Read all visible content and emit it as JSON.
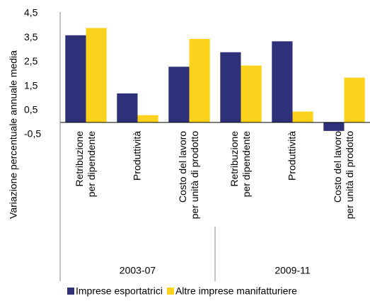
{
  "chart_data": {
    "type": "bar",
    "y_label": "Variazione percentuale annuale media",
    "categories": [
      [
        "Retribuzione",
        "per dipendente"
      ],
      [
        "Produttività"
      ],
      [
        "Costo del lavoro",
        "per unità di prodotto"
      ],
      [
        "Retribuzione",
        "per dipendente"
      ],
      [
        "Produttività"
      ],
      [
        "Costo del lavoro",
        "per unità di prodotto"
      ]
    ],
    "groups": [
      "2003-07",
      "2009-11"
    ],
    "series": [
      {
        "name": "Imprese esportatrici",
        "color": "#2e3079",
        "values": [
          3.6,
          1.2,
          2.3,
          2.9,
          3.35,
          -0.35
        ]
      },
      {
        "name": "Altre imprese manifatturiere",
        "color": "#fdd21d",
        "values": [
          3.9,
          0.3,
          3.45,
          2.35,
          0.45,
          1.85
        ]
      }
    ],
    "ylim": [
      -0.5,
      4.5
    ],
    "yticks": [
      {
        "value": -0.5,
        "label": "-0,5"
      },
      {
        "value": 0.5,
        "label": "0,5"
      },
      {
        "value": 1.5,
        "label": "1,5"
      },
      {
        "value": 2.5,
        "label": "2,5"
      },
      {
        "value": 3.5,
        "label": "3,5"
      },
      {
        "value": 4.5,
        "label": "4,5"
      }
    ]
  }
}
